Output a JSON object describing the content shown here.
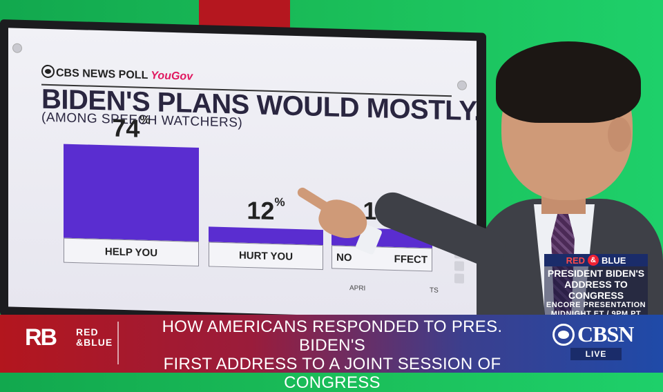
{
  "poll": {
    "source_label": "CBS NEWS POLL",
    "partner_label": "YouGov",
    "title": "BIDEN'S PLANS WOULD MOSTLY...",
    "subtitle": "(AMONG SPEECH WATCHERS)",
    "date_note_visible": "APRI",
    "date_note_tail": "TS"
  },
  "chart_data": {
    "type": "bar",
    "title": "BIDEN'S PLANS WOULD MOSTLY...",
    "subtitle": "(AMONG SPEECH WATCHERS)",
    "categories": [
      "HELP YOU",
      "HURT YOU",
      "NOT AFFECT"
    ],
    "category_labels_visible": [
      "HELP YOU",
      "HURT YOU",
      "NO",
      "FFECT"
    ],
    "values": [
      74,
      12,
      14
    ],
    "value_labels": [
      "74",
      "12",
      "14"
    ],
    "unit": "%",
    "ylim": [
      0,
      74
    ],
    "bar_color": "#5a2dd0"
  },
  "promo": {
    "brand_left": "RED",
    "brand_amp": "&",
    "brand_right": "BLUE",
    "line1": "PRESIDENT BIDEN'S",
    "line2": "ADDRESS TO CONGRESS",
    "line3": "ENCORE PRESENTATION",
    "line4": "MIDNIGHT ET / 9PM PT"
  },
  "lower_third": {
    "logo_mark": "RB",
    "logo_word_1": "RED",
    "logo_word_amp": "&",
    "logo_word_2": "BLUE",
    "headline_line1": "HOW AMERICANS RESPONDED TO PRES. BIDEN'S",
    "headline_line2": "FIRST ADDRESS TO A JOINT SESSION OF CONGRESS",
    "network": "CBSN",
    "live_label": "LIVE"
  },
  "colors": {
    "green_screen": "#1bbf5a",
    "accent_red": "#b5171f",
    "bar_purple": "#5a2dd0",
    "navy": "#1a2c6a"
  }
}
